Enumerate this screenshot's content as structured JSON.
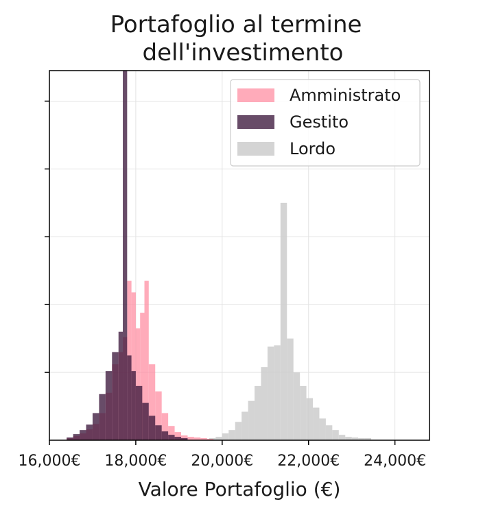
{
  "chart_data": {
    "type": "bar",
    "subtype": "histogram",
    "title": [
      "Portafoglio al termine",
      "dell'investimento"
    ],
    "xlabel": "Valore Portafoglio (€)",
    "ylabel": "",
    "xlim": [
      16000,
      24800
    ],
    "ylim": [
      0,
      545
    ],
    "x_ticks": [
      16000,
      18000,
      20000,
      22000,
      24000
    ],
    "x_tick_labels": [
      "16,000€",
      "18,000€",
      "20,000€",
      "22,000€",
      "24,000€"
    ],
    "y_ticks": [
      100,
      200,
      300,
      400,
      500
    ],
    "y_tick_labels_visible": false,
    "grid": true,
    "legend_position": "top-right",
    "series": [
      {
        "name": "Lordo",
        "color": "#cccccc",
        "opacity": 0.85,
        "bins": [
          [
            19700,
            19850,
            3
          ],
          [
            19850,
            20000,
            5
          ],
          [
            20000,
            20150,
            10
          ],
          [
            20150,
            20300,
            15
          ],
          [
            20300,
            20450,
            27
          ],
          [
            20450,
            20600,
            42
          ],
          [
            20600,
            20750,
            58
          ],
          [
            20750,
            20900,
            80
          ],
          [
            20900,
            21050,
            108
          ],
          [
            21050,
            21200,
            138
          ],
          [
            21200,
            21350,
            140
          ],
          [
            21350,
            21500,
            350
          ],
          [
            21500,
            21650,
            150
          ],
          [
            21650,
            21800,
            100
          ],
          [
            21800,
            21950,
            80
          ],
          [
            21950,
            22100,
            62
          ],
          [
            22100,
            22250,
            48
          ],
          [
            22250,
            22400,
            32
          ],
          [
            22400,
            22550,
            22
          ],
          [
            22550,
            22700,
            15
          ],
          [
            22700,
            22850,
            8
          ],
          [
            22850,
            23000,
            5
          ],
          [
            23000,
            23150,
            4
          ],
          [
            23150,
            23300,
            3
          ],
          [
            23300,
            23450,
            3
          ]
        ]
      },
      {
        "name": "Amministrato",
        "color": "#ff8fa3",
        "opacity": 0.75,
        "bins": [
          [
            16400,
            16550,
            3
          ],
          [
            16550,
            16700,
            6
          ],
          [
            16700,
            16850,
            10
          ],
          [
            16850,
            17000,
            16
          ],
          [
            17000,
            17150,
            24
          ],
          [
            17150,
            17300,
            40
          ],
          [
            17300,
            17450,
            70
          ],
          [
            17450,
            17600,
            112
          ],
          [
            17600,
            17700,
            130
          ],
          [
            17700,
            17800,
            152
          ],
          [
            17800,
            17900,
            235
          ],
          [
            17900,
            18000,
            218
          ],
          [
            18000,
            18100,
            165
          ],
          [
            18100,
            18200,
            188
          ],
          [
            18200,
            18300,
            235
          ],
          [
            18300,
            18450,
            112
          ],
          [
            18450,
            18600,
            72
          ],
          [
            18600,
            18750,
            40
          ],
          [
            18750,
            18900,
            21
          ],
          [
            18900,
            19050,
            12
          ],
          [
            19050,
            19200,
            7
          ],
          [
            19200,
            19350,
            5
          ],
          [
            19350,
            19500,
            4
          ],
          [
            19500,
            19650,
            3
          ],
          [
            19650,
            19800,
            2
          ]
        ]
      },
      {
        "name": "Gestito",
        "color": "#3d1a3d",
        "opacity": 0.78,
        "bins": [
          [
            16400,
            16550,
            4
          ],
          [
            16550,
            16700,
            9
          ],
          [
            16700,
            16850,
            15
          ],
          [
            16850,
            17000,
            23
          ],
          [
            17000,
            17150,
            40
          ],
          [
            17150,
            17300,
            68
          ],
          [
            17300,
            17450,
            102
          ],
          [
            17450,
            17600,
            130
          ],
          [
            17600,
            17700,
            160
          ],
          [
            17700,
            17800,
            545
          ],
          [
            17800,
            17900,
            125
          ],
          [
            17900,
            18000,
            102
          ],
          [
            18000,
            18150,
            80
          ],
          [
            18150,
            18300,
            55
          ],
          [
            18300,
            18450,
            36
          ],
          [
            18450,
            18600,
            22
          ],
          [
            18600,
            18750,
            13
          ],
          [
            18750,
            18900,
            8
          ],
          [
            18900,
            19050,
            5
          ],
          [
            19050,
            19200,
            3
          ]
        ]
      }
    ],
    "legend_order": [
      "Amministrato",
      "Gestito",
      "Lordo"
    ]
  }
}
